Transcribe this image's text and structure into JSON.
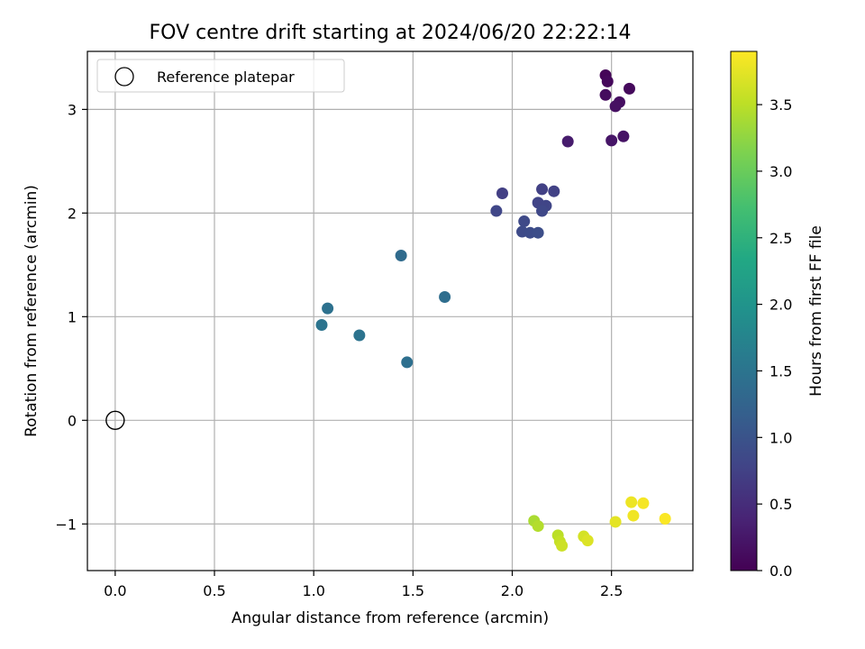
{
  "chart_data": {
    "type": "scatter",
    "title": "FOV centre drift starting at 2024/06/20 22:22:14",
    "xlabel": "Angular distance from reference (arcmin)",
    "ylabel": "Rotation from reference (arcmin)",
    "xlim": [
      -0.14,
      2.91
    ],
    "ylim": [
      -1.45,
      3.56
    ],
    "xticks": [
      0.0,
      0.5,
      1.0,
      1.5,
      2.0,
      2.5
    ],
    "xtick_labels": [
      "0.0",
      "0.5",
      "1.0",
      "1.5",
      "2.0",
      "2.5"
    ],
    "yticks": [
      -1,
      0,
      1,
      2,
      3
    ],
    "ytick_labels": [
      "−1",
      "0",
      "1",
      "2",
      "3"
    ],
    "grid": true,
    "legend": {
      "entries": [
        "Reference platepar"
      ],
      "placement": "top-left"
    },
    "reference_point": {
      "x": 0.0,
      "y": 0.0
    },
    "colorbar": {
      "label": "Hours from first FF file",
      "colormap": "viridis",
      "range": [
        0.0,
        3.9
      ],
      "ticks": [
        0.0,
        0.5,
        1.0,
        1.5,
        2.0,
        2.5,
        3.0,
        3.5
      ],
      "tick_labels": [
        "0.0",
        "0.5",
        "1.0",
        "1.5",
        "2.0",
        "2.5",
        "3.0",
        "3.5"
      ]
    },
    "points": [
      {
        "x": 2.47,
        "y": 3.33,
        "c": 0.05
      },
      {
        "x": 2.48,
        "y": 3.27,
        "c": 0.08
      },
      {
        "x": 2.59,
        "y": 3.2,
        "c": 0.1
      },
      {
        "x": 2.47,
        "y": 3.14,
        "c": 0.12
      },
      {
        "x": 2.54,
        "y": 3.07,
        "c": 0.15
      },
      {
        "x": 2.52,
        "y": 3.03,
        "c": 0.17
      },
      {
        "x": 2.56,
        "y": 2.74,
        "c": 0.2
      },
      {
        "x": 2.5,
        "y": 2.7,
        "c": 0.22
      },
      {
        "x": 2.28,
        "y": 2.69,
        "c": 0.3
      },
      {
        "x": 1.95,
        "y": 2.19,
        "c": 0.72
      },
      {
        "x": 2.15,
        "y": 2.23,
        "c": 0.74
      },
      {
        "x": 2.21,
        "y": 2.21,
        "c": 0.75
      },
      {
        "x": 2.13,
        "y": 2.1,
        "c": 0.78
      },
      {
        "x": 2.17,
        "y": 2.07,
        "c": 0.8
      },
      {
        "x": 1.92,
        "y": 2.02,
        "c": 0.82
      },
      {
        "x": 2.15,
        "y": 2.02,
        "c": 0.84
      },
      {
        "x": 2.06,
        "y": 1.92,
        "c": 0.86
      },
      {
        "x": 2.05,
        "y": 1.82,
        "c": 0.88
      },
      {
        "x": 2.09,
        "y": 1.81,
        "c": 0.9
      },
      {
        "x": 2.13,
        "y": 1.81,
        "c": 0.92
      },
      {
        "x": 1.44,
        "y": 1.59,
        "c": 1.35
      },
      {
        "x": 1.66,
        "y": 1.19,
        "c": 1.4
      },
      {
        "x": 1.07,
        "y": 1.08,
        "c": 1.45
      },
      {
        "x": 1.04,
        "y": 0.92,
        "c": 1.5
      },
      {
        "x": 1.23,
        "y": 0.82,
        "c": 1.48
      },
      {
        "x": 1.47,
        "y": 0.56,
        "c": 1.42
      },
      {
        "x": 2.11,
        "y": -0.97,
        "c": 3.4
      },
      {
        "x": 2.13,
        "y": -1.02,
        "c": 3.45
      },
      {
        "x": 2.23,
        "y": -1.11,
        "c": 3.5
      },
      {
        "x": 2.24,
        "y": -1.17,
        "c": 3.55
      },
      {
        "x": 2.25,
        "y": -1.21,
        "c": 3.6
      },
      {
        "x": 2.36,
        "y": -1.12,
        "c": 3.65
      },
      {
        "x": 2.38,
        "y": -1.16,
        "c": 3.7
      },
      {
        "x": 2.52,
        "y": -0.98,
        "c": 3.75
      },
      {
        "x": 2.6,
        "y": -0.79,
        "c": 3.8
      },
      {
        "x": 2.61,
        "y": -0.92,
        "c": 3.82
      },
      {
        "x": 2.66,
        "y": -0.8,
        "c": 3.85
      },
      {
        "x": 2.77,
        "y": -0.95,
        "c": 3.88
      }
    ]
  }
}
